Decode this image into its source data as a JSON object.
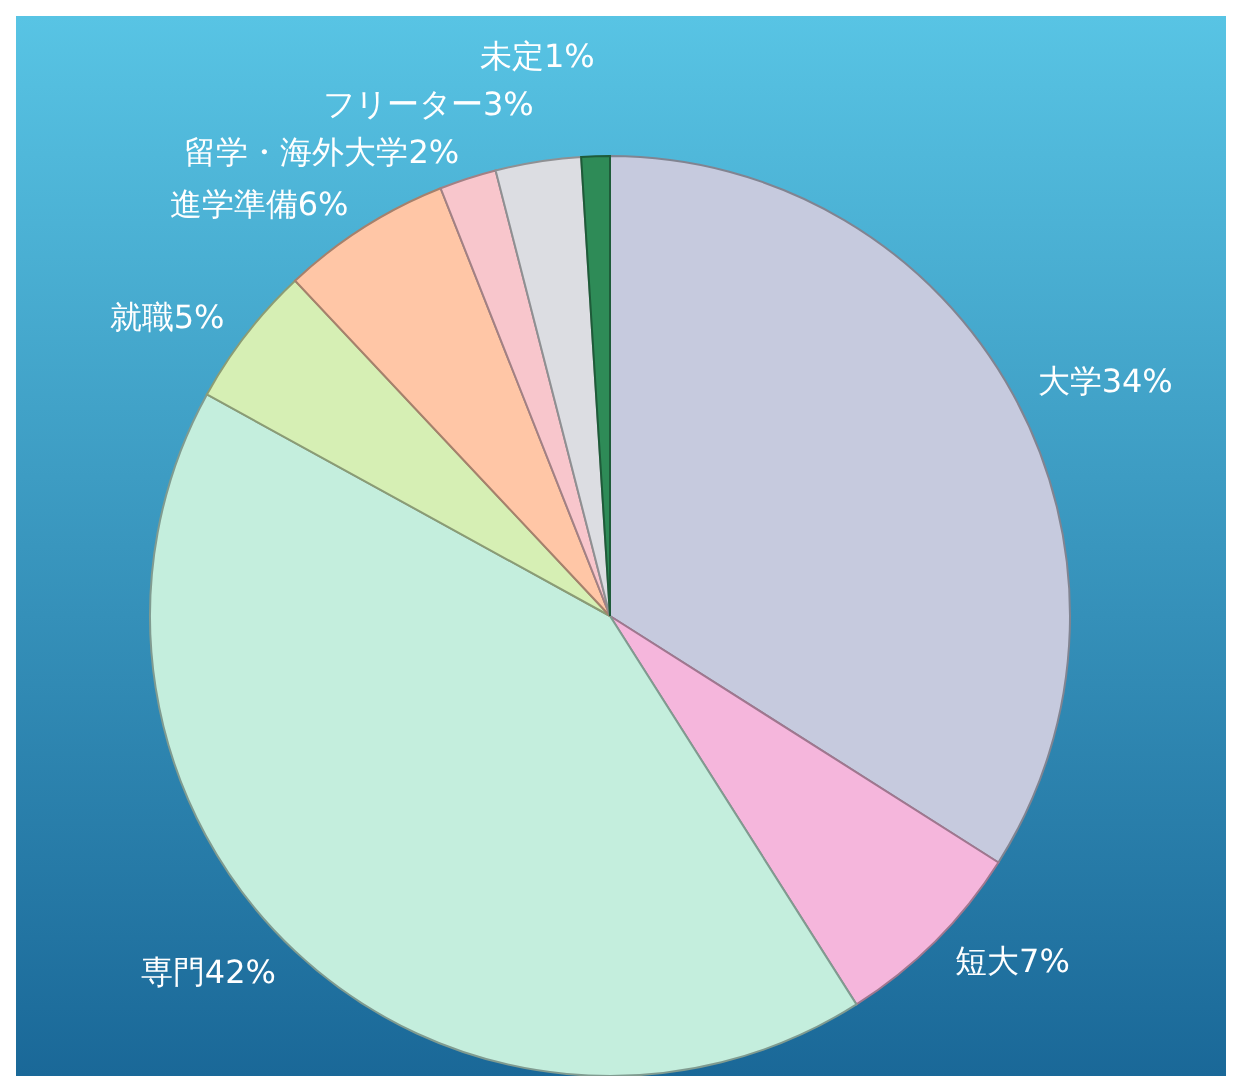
{
  "chart_data": {
    "type": "pie",
    "categories": [
      "大学",
      "短大",
      "専門",
      "就職",
      "進学準備",
      "留学・海外大学",
      "フリーター",
      "未定"
    ],
    "values": [
      34,
      7,
      42,
      5,
      6,
      2,
      3,
      1
    ],
    "colors": [
      "#c6cade",
      "#f5b6dc",
      "#c4eedd",
      "#d6efb4",
      "#ffc6a6",
      "#f8c6cc",
      "#dcdde2",
      "#2e8b57"
    ],
    "value_labels": [
      "34%",
      "7%",
      "42%",
      "5%",
      "6%",
      "2%",
      "3%",
      "1%"
    ]
  }
}
